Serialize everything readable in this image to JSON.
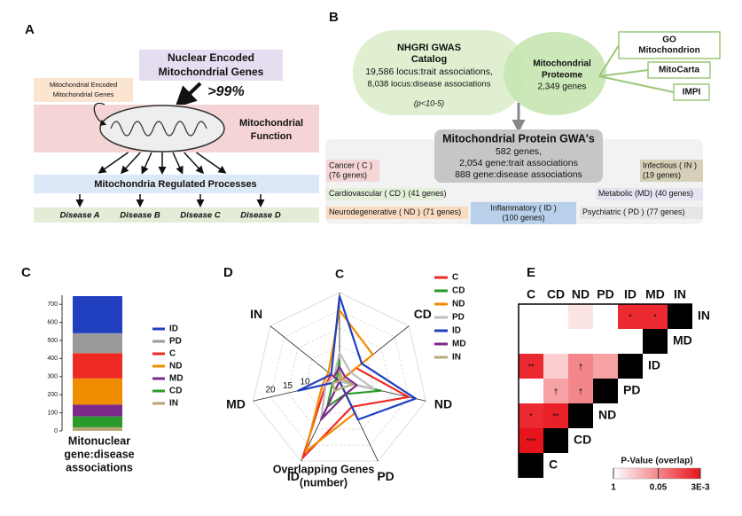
{
  "panels": {
    "a": {
      "label": "A",
      "nuclear": [
        "Nuclear Encoded",
        "Mitochondrial Genes"
      ],
      "percent": ">99%",
      "mito_encoded": [
        "Mitochondrial Encoded",
        "Mitochondrial Genes"
      ],
      "function": [
        "Mitochondrial",
        "Function"
      ],
      "processes": "Mitochondria Regulated Processes",
      "diseases": [
        "Disease A",
        "Disease B",
        "Disease C",
        "Disease D"
      ]
    },
    "b": {
      "label": "B",
      "gwas": {
        "title": [
          "NHGRI GWAS",
          "Catalog"
        ],
        "lines": [
          "19,586 locus:trait associations,",
          "8,038 locus:disease associations"
        ],
        "threshold": "(p<10-5)"
      },
      "proteome": {
        "title": [
          "Mitochondrial",
          "Proteome"
        ],
        "genes": "2,349 genes"
      },
      "sources": [
        [
          "GO",
          "Mitochondrion"
        ],
        [
          "MitoCarta"
        ],
        [
          "IMPI"
        ]
      ],
      "result": {
        "title": "Mitochondrial Protein GWA's",
        "lines": [
          "582 genes,",
          "2,054 gene:trait associations",
          "888 gene:disease associations"
        ]
      },
      "categories": [
        {
          "label": "Cancer ( C )",
          "genes": "(76 genes)"
        },
        {
          "label": "Cardiovascular ( CD )",
          "genes": "(41 genes)"
        },
        {
          "label": "Neurodegenerative ( ND )",
          "genes": "(71 genes)"
        },
        {
          "label": "Inflammatory ( ID )",
          "genes": "(100 genes)"
        },
        {
          "label": "Psychiatric ( PD )",
          "genes": "(77 genes)"
        },
        {
          "label": "Metabolic (MD)",
          "genes": "(40 genes)"
        },
        {
          "label": "Infectious ( IN )",
          "genes": "(19 genes)"
        }
      ]
    }
  },
  "chart_data": [
    {
      "type": "bar",
      "panel_label": "C",
      "stacked": true,
      "categories": [
        null
      ],
      "xlabel": [
        "Mitonuclear",
        "gene:disease",
        "associations"
      ],
      "ylim": [
        0,
        750
      ],
      "yticks": [
        0,
        100,
        200,
        300,
        400,
        500,
        600,
        700
      ],
      "series": [
        {
          "name": "IN",
          "color": "#b8a878",
          "values": [
            20
          ]
        },
        {
          "name": "CD",
          "color": "#2a9a2a",
          "values": [
            60
          ]
        },
        {
          "name": "MD",
          "color": "#7b2a8a",
          "values": [
            65
          ]
        },
        {
          "name": "ND",
          "color": "#f08c00",
          "values": [
            145
          ]
        },
        {
          "name": "C",
          "color": "#ee2a24",
          "values": [
            140
          ]
        },
        {
          "name": "PD",
          "color": "#9a9a9a",
          "values": [
            110
          ]
        },
        {
          "name": "ID",
          "color": "#2040c0",
          "values": [
            205
          ]
        }
      ]
    },
    {
      "type": "radar",
      "panel_label": "D",
      "xlabel": [
        "Overlapping Genes",
        "(number)"
      ],
      "categories": [
        "C",
        "CD",
        "ND",
        "PD",
        "ID",
        "MD",
        "IN"
      ],
      "rlim": [
        0,
        25
      ],
      "rticks": [
        10,
        15,
        20
      ],
      "series": [
        {
          "name": "C",
          "color": "#ee2a24",
          "values": [
            0,
            6,
            20,
            8,
            24,
            4,
            3
          ]
        },
        {
          "name": "CD",
          "color": "#2a9a2a",
          "values": [
            6,
            0,
            12,
            4,
            8,
            2,
            1
          ]
        },
        {
          "name": "ND",
          "color": "#f08c00",
          "values": [
            20,
            12,
            0,
            10,
            22,
            5,
            4
          ]
        },
        {
          "name": "PD",
          "color": "#bdbdbd",
          "values": [
            8,
            4,
            10,
            0,
            12,
            4,
            2
          ]
        },
        {
          "name": "ID",
          "color": "#2040c0",
          "values": [
            24,
            8,
            22,
            12,
            0,
            12,
            3
          ]
        },
        {
          "name": "MD",
          "color": "#7b2a8a",
          "values": [
            4,
            2,
            5,
            4,
            12,
            0,
            2
          ]
        },
        {
          "name": "IN",
          "color": "#b8a878",
          "values": [
            3,
            1,
            4,
            2,
            3,
            2,
            0
          ]
        }
      ]
    },
    {
      "type": "heatmap",
      "panel_label": "E",
      "columns": [
        "C",
        "CD",
        "ND",
        "PD",
        "ID",
        "MD",
        "IN"
      ],
      "rows": [
        "IN",
        "MD",
        "ID",
        "PD",
        "ND",
        "CD",
        "C"
      ],
      "values": [
        [
          1,
          1,
          0.5,
          1,
          0.005,
          0.005
        ],
        [
          1,
          1,
          1,
          1,
          1
        ],
        [
          0.005,
          0.3,
          0.05,
          0.1
        ],
        [
          1,
          0.1,
          0.05
        ],
        [
          0.005,
          0.004
        ],
        [
          0.003
        ],
        []
      ],
      "annotations": [
        {
          "row": "IN",
          "column": "ID",
          "label": "*"
        },
        {
          "row": "IN",
          "column": "MD",
          "label": "*"
        },
        {
          "row": "ID",
          "column": "C",
          "label": "**"
        },
        {
          "row": "ID",
          "column": "ND",
          "label": "†"
        },
        {
          "row": "PD",
          "column": "CD",
          "label": "†"
        },
        {
          "row": "PD",
          "column": "ND",
          "label": "†"
        },
        {
          "row": "ND",
          "column": "C",
          "label": "*"
        },
        {
          "row": "ND",
          "column": "CD",
          "label": "**"
        },
        {
          "row": "CD",
          "column": "C",
          "label": "***"
        }
      ],
      "log_scale": true,
      "clim": [
        1,
        0.003
      ],
      "colors": [
        "#ffffff",
        "#e8141c"
      ],
      "colorbar_title": "P-Value (overlap)",
      "colorbar_ticks": [
        1,
        0.05,
        {
          "value": 0.003,
          "label": "3E-3"
        }
      ]
    }
  ]
}
